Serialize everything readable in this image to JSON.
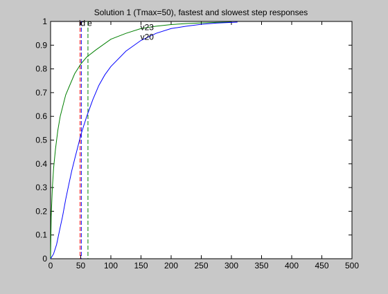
{
  "chart_data": {
    "type": "line",
    "title": "Solution 1 (Tmax=50), fastest and slowest step responses",
    "xlabel": "",
    "ylabel": "",
    "xlim": [
      0,
      500
    ],
    "ylim": [
      0,
      1
    ],
    "x_ticks": [
      0,
      50,
      100,
      150,
      200,
      250,
      300,
      350,
      400,
      450,
      500
    ],
    "y_ticks": [
      0,
      0.1,
      0.2,
      0.3,
      0.4,
      0.5,
      0.6,
      0.7,
      0.8,
      0.9,
      1
    ],
    "grid": false,
    "series": [
      {
        "name": "v23",
        "color": "#007f00",
        "x": [
          0,
          1,
          3,
          5,
          8,
          12,
          16,
          20,
          25,
          30,
          40,
          50,
          60,
          75,
          100,
          125,
          150,
          175,
          200,
          225,
          250,
          275,
          300
        ],
        "y": [
          0.0,
          0.18,
          0.3,
          0.38,
          0.46,
          0.54,
          0.6,
          0.64,
          0.69,
          0.72,
          0.78,
          0.82,
          0.85,
          0.88,
          0.925,
          0.95,
          0.97,
          0.98,
          0.987,
          0.991,
          0.994,
          0.996,
          0.997
        ]
      },
      {
        "name": "v20",
        "color": "#0000ff",
        "x": [
          0,
          5,
          10,
          15,
          20,
          25,
          30,
          35,
          40,
          45,
          50,
          55,
          60,
          70,
          80,
          90,
          100,
          125,
          150,
          175,
          200,
          225,
          250,
          275,
          300,
          310
        ],
        "y": [
          0.0,
          0.02,
          0.06,
          0.12,
          0.18,
          0.25,
          0.31,
          0.37,
          0.42,
          0.47,
          0.52,
          0.56,
          0.6,
          0.67,
          0.73,
          0.775,
          0.81,
          0.875,
          0.92,
          0.95,
          0.97,
          0.98,
          0.988,
          0.993,
          0.996,
          0.997
        ]
      }
    ],
    "vlines": [
      {
        "x": 49,
        "color": "#ff0000",
        "style": "dashed"
      },
      {
        "x": 51,
        "color": "#0000ff",
        "style": "dashed"
      },
      {
        "x": 62,
        "color": "#007f00",
        "style": "dashed"
      }
    ],
    "annotations": [
      {
        "text": "v23",
        "x": 149,
        "y": 0.975
      },
      {
        "text": "v20",
        "x": 149,
        "y": 0.935
      },
      {
        "text": "id",
        "x": 47,
        "y": 0.993
      },
      {
        "text": "e",
        "x": 61,
        "y": 0.993
      }
    ]
  }
}
